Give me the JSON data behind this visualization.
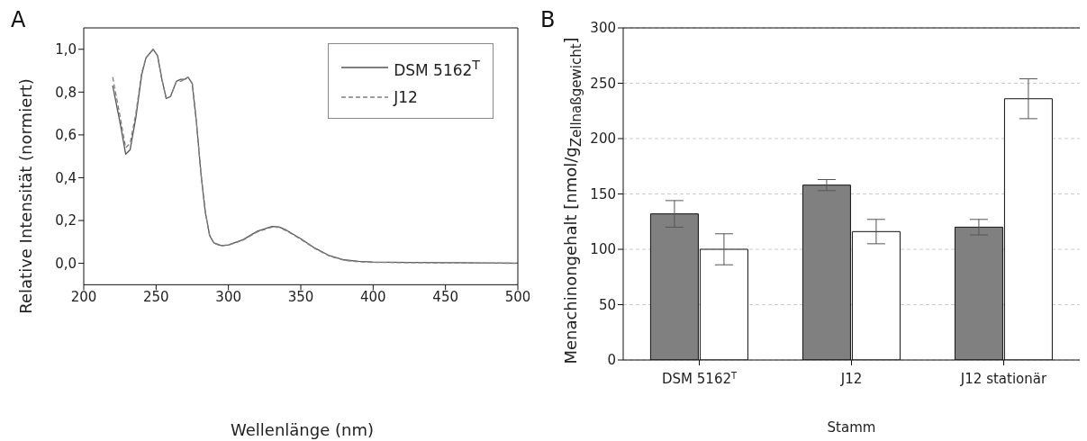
{
  "chart_data": [
    {
      "type": "line",
      "title": "A",
      "xlabel": "Wellenlänge (nm)",
      "ylabel": "Relative Intensität (normiert)",
      "xlim": [
        200,
        500
      ],
      "xticks": [
        200,
        250,
        300,
        350,
        400,
        450,
        500
      ],
      "ylim": [
        -0.1,
        1.1
      ],
      "yticks": [
        {
          "value": 0,
          "label": "0,0"
        },
        {
          "value": 0.2,
          "label": "0,2"
        },
        {
          "value": 0.4,
          "label": "0,4"
        },
        {
          "value": 0.6,
          "label": "0,6"
        },
        {
          "value": 0.8,
          "label": "0,8"
        },
        {
          "value": 1.0,
          "label": "1,0"
        }
      ],
      "grid": false,
      "legend": "top right",
      "marker": "none",
      "series": [
        {
          "name": "DSM 5162$^{T}$",
          "color": "#555555",
          "line_style": "solid",
          "x": [
            220,
            225,
            229,
            232,
            236,
            240,
            243,
            248,
            251,
            254,
            257,
            260,
            264,
            267,
            270,
            272,
            275,
            278,
            281,
            284,
            287,
            290,
            295,
            300,
            310,
            320,
            330,
            335,
            340,
            350,
            360,
            370,
            380,
            390,
            400,
            425,
            450,
            475,
            500
          ],
          "values": [
            0.83,
            0.66,
            0.51,
            0.53,
            0.68,
            0.88,
            0.96,
            1.0,
            0.97,
            0.86,
            0.77,
            0.78,
            0.85,
            0.86,
            0.86,
            0.87,
            0.84,
            0.65,
            0.42,
            0.24,
            0.13,
            0.095,
            0.083,
            0.086,
            0.11,
            0.15,
            0.172,
            0.17,
            0.155,
            0.115,
            0.07,
            0.035,
            0.016,
            0.009,
            0.006,
            0.004,
            0.003,
            0.002,
            0.001
          ]
        },
        {
          "name": "J12",
          "color": "#808080",
          "line_style": "dashed",
          "x": [
            220,
            225,
            229,
            232,
            236,
            240,
            243,
            248,
            251,
            254,
            257,
            260,
            264,
            267,
            270,
            272,
            275,
            278,
            281,
            284,
            287,
            290,
            295,
            300,
            310,
            320,
            330,
            335,
            340,
            350,
            360,
            370,
            380,
            390,
            400,
            425,
            450,
            475,
            500
          ],
          "values": [
            0.87,
            0.69,
            0.54,
            0.56,
            0.7,
            0.89,
            0.96,
            1.0,
            0.97,
            0.86,
            0.77,
            0.78,
            0.85,
            0.85,
            0.86,
            0.87,
            0.84,
            0.65,
            0.42,
            0.24,
            0.13,
            0.093,
            0.082,
            0.085,
            0.108,
            0.147,
            0.169,
            0.168,
            0.152,
            0.112,
            0.068,
            0.033,
            0.014,
            0.007,
            0.004,
            0.003,
            0.002,
            0.001,
            0.0
          ]
        }
      ]
    },
    {
      "type": "bar",
      "title": "B",
      "xlabel": "Stamm",
      "ylabel": "Menachinongehalt [nmol/g$_{Zellnaßgewicht}$]",
      "categories": [
        "DSM 5162$^{T}$",
        "J12",
        "J12 stationär"
      ],
      "ylim": [
        0,
        300
      ],
      "yticks": [
        0,
        50,
        100,
        150,
        200,
        250,
        300
      ],
      "grid": "y",
      "series": [
        {
          "color": "#808080",
          "values": [
            132,
            158,
            120
          ],
          "errors": [
            12,
            5,
            7
          ]
        },
        {
          "color": "#ffffff",
          "values": [
            100,
            116,
            236
          ],
          "errors": [
            14,
            11,
            18
          ]
        }
      ]
    }
  ]
}
